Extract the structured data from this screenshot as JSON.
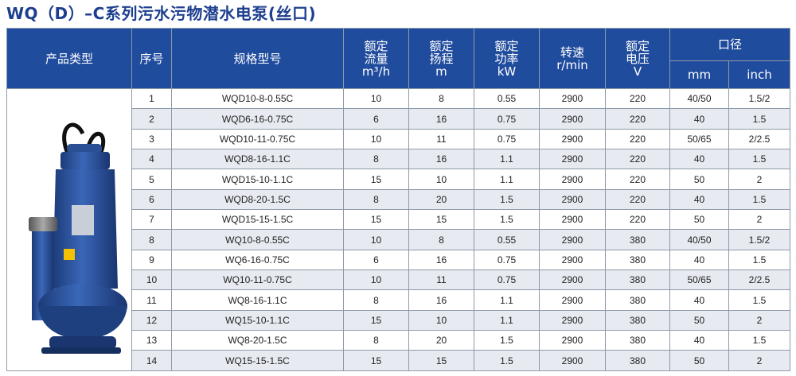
{
  "title": "WQ（D）–C系列污水污物潜水电泵(丝口)",
  "header": {
    "type": "产品类型",
    "index": "序号",
    "model": "规格型号",
    "flow": [
      "额定",
      "流量",
      "m³/h"
    ],
    "head": [
      "额定",
      "扬程",
      "m"
    ],
    "power": [
      "额定",
      "功率",
      "kW"
    ],
    "speed": [
      "转速",
      "r/min"
    ],
    "voltage": [
      "额定",
      "电压",
      "V"
    ],
    "outlet": "口径",
    "outlet_mm": "mm",
    "outlet_inch": "inch"
  },
  "image": {
    "description": "blue submersible sewage pump",
    "body_color": "#2a4f93"
  },
  "rows": [
    {
      "index": "1",
      "model": "WQD10-8-0.55C",
      "flow": "10",
      "head": "8",
      "power": "0.55",
      "speed": "2900",
      "voltage": "220",
      "mm": "40/50",
      "inch": "1.5/2"
    },
    {
      "index": "2",
      "model": "WQD6-16-0.75C",
      "flow": "6",
      "head": "16",
      "power": "0.75",
      "speed": "2900",
      "voltage": "220",
      "mm": "40",
      "inch": "1.5"
    },
    {
      "index": "3",
      "model": "WQD10-11-0.75C",
      "flow": "10",
      "head": "11",
      "power": "0.75",
      "speed": "2900",
      "voltage": "220",
      "mm": "50/65",
      "inch": "2/2.5"
    },
    {
      "index": "4",
      "model": "WQD8-16-1.1C",
      "flow": "8",
      "head": "16",
      "power": "1.1",
      "speed": "2900",
      "voltage": "220",
      "mm": "40",
      "inch": "1.5"
    },
    {
      "index": "5",
      "model": "WQD15-10-1.1C",
      "flow": "15",
      "head": "10",
      "power": "1.1",
      "speed": "2900",
      "voltage": "220",
      "mm": "50",
      "inch": "2"
    },
    {
      "index": "6",
      "model": "WQD8-20-1.5C",
      "flow": "8",
      "head": "20",
      "power": "1.5",
      "speed": "2900",
      "voltage": "220",
      "mm": "40",
      "inch": "1.5"
    },
    {
      "index": "7",
      "model": "WQD15-15-1.5C",
      "flow": "15",
      "head": "15",
      "power": "1.5",
      "speed": "2900",
      "voltage": "220",
      "mm": "50",
      "inch": "2"
    },
    {
      "index": "8",
      "model": "WQ10-8-0.55C",
      "flow": "10",
      "head": "8",
      "power": "0.55",
      "speed": "2900",
      "voltage": "380",
      "mm": "40/50",
      "inch": "1.5/2"
    },
    {
      "index": "9",
      "model": "WQ6-16-0.75C",
      "flow": "6",
      "head": "16",
      "power": "0.75",
      "speed": "2900",
      "voltage": "380",
      "mm": "40",
      "inch": "1.5"
    },
    {
      "index": "10",
      "model": "WQ10-11-0.75C",
      "flow": "10",
      "head": "11",
      "power": "0.75",
      "speed": "2900",
      "voltage": "380",
      "mm": "50/65",
      "inch": "2/2.5"
    },
    {
      "index": "11",
      "model": "WQ8-16-1.1C",
      "flow": "8",
      "head": "16",
      "power": "1.1",
      "speed": "2900",
      "voltage": "380",
      "mm": "40",
      "inch": "1.5"
    },
    {
      "index": "12",
      "model": "WQ15-10-1.1C",
      "flow": "15",
      "head": "10",
      "power": "1.1",
      "speed": "2900",
      "voltage": "380",
      "mm": "50",
      "inch": "2"
    },
    {
      "index": "13",
      "model": "WQ8-20-1.5C",
      "flow": "8",
      "head": "20",
      "power": "1.5",
      "speed": "2900",
      "voltage": "380",
      "mm": "40",
      "inch": "1.5"
    },
    {
      "index": "14",
      "model": "WQ15-15-1.5C",
      "flow": "15",
      "head": "15",
      "power": "1.5",
      "speed": "2900",
      "voltage": "380",
      "mm": "50",
      "inch": "2"
    }
  ]
}
